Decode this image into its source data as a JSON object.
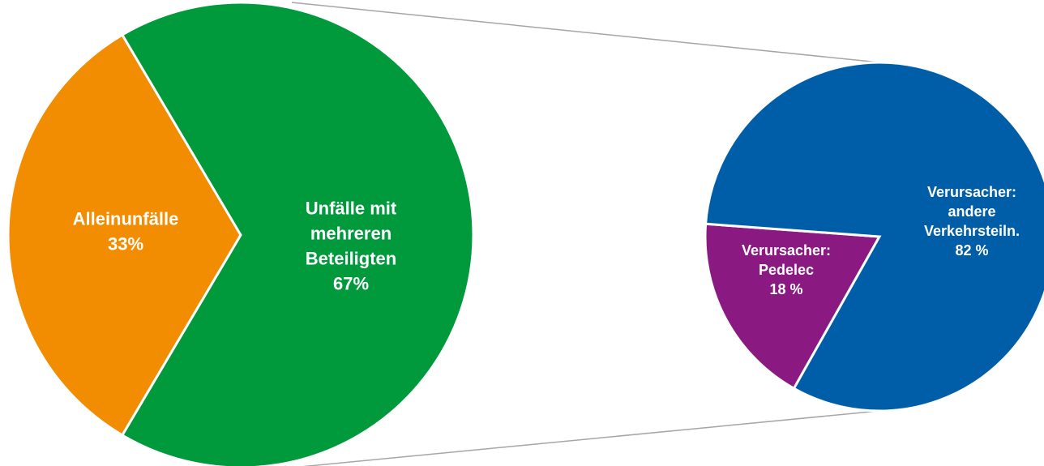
{
  "chart_data": [
    {
      "type": "pie",
      "categories": [
        [
          "Alleinunfälle"
        ],
        [
          "Unfälle mit",
          "mehreren",
          "Beteiligten"
        ]
      ],
      "values": [
        33,
        67
      ],
      "value_labels": [
        "33%",
        "67%"
      ],
      "colors": [
        "#f28c00",
        "#009a3d"
      ]
    },
    {
      "type": "pie",
      "categories": [
        [
          "Verursacher:",
          "Pedelec"
        ],
        [
          "Verursacher:",
          "andere",
          "Verkehrsteiln."
        ]
      ],
      "values": [
        18,
        82
      ],
      "value_labels": [
        "18 %",
        "82 %"
      ],
      "colors": [
        "#8a1a82",
        "#005ea8"
      ]
    }
  ]
}
